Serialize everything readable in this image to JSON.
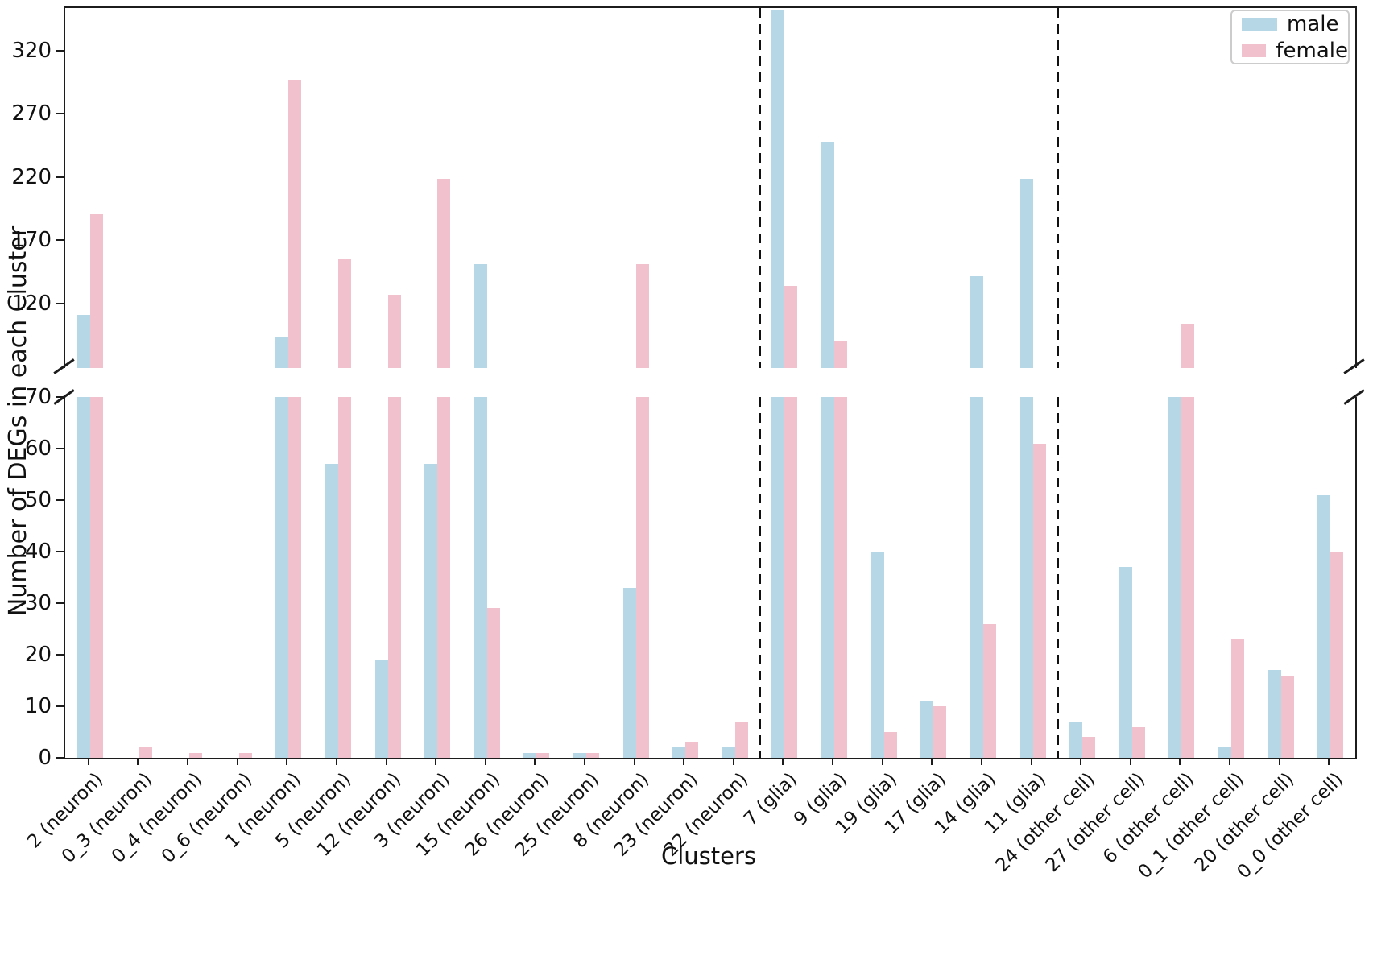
{
  "chart_data": {
    "type": "bar",
    "title": "",
    "xlabel": "Clusters",
    "ylabel": "Number of DEGs in each Cluster",
    "grid": false,
    "legend_position": "top-right",
    "categories": [
      "2 (neuron)",
      "0_3 (neuron)",
      "0_4 (neuron)",
      "0_6 (neuron)",
      "1 (neuron)",
      "5 (neuron)",
      "12 (neuron)",
      "3 (neuron)",
      "15 (neuron)",
      "26 (neuron)",
      "25 (neuron)",
      "8 (neuron)",
      "23 (neuron)",
      "22 (neuron)",
      "7 (glia)",
      "9 (glia)",
      "19 (glia)",
      "17 (glia)",
      "14 (glia)",
      "11 (glia)",
      "24 (other cell)",
      "27 (other cell)",
      "6 (other cell)",
      "0_1 (other cell)",
      "20 (other cell)",
      "0_0 (other cell)"
    ],
    "series": [
      {
        "name": "male",
        "color": "#b6d7e6",
        "values": [
          112,
          0,
          0,
          0,
          94,
          57,
          19,
          57,
          152,
          1,
          1,
          33,
          2,
          2,
          353,
          249,
          40,
          11,
          143,
          220,
          7,
          37,
          70,
          2,
          17,
          51
        ]
      },
      {
        "name": "female",
        "color": "#f1c1cd",
        "values": [
          192,
          2,
          1,
          1,
          298,
          156,
          128,
          220,
          29,
          1,
          1,
          152,
          3,
          7,
          135,
          92,
          5,
          10,
          26,
          61,
          4,
          6,
          105,
          23,
          16,
          40
        ]
      }
    ],
    "broken_axis": {
      "bottom_range": [
        0,
        70
      ],
      "bottom_ticks": [
        0,
        10,
        20,
        30,
        40,
        50,
        60,
        70
      ],
      "top_range": [
        70,
        355
      ],
      "top_ticks": [
        120,
        170,
        220,
        270,
        320
      ]
    },
    "separators_after_category_index": [
      13,
      19
    ]
  }
}
